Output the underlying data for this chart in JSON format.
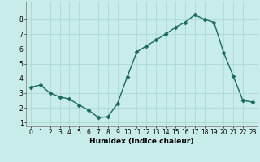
{
  "x": [
    0,
    1,
    2,
    3,
    4,
    5,
    6,
    7,
    8,
    9,
    10,
    11,
    12,
    13,
    14,
    15,
    16,
    17,
    18,
    19,
    20,
    21,
    22,
    23
  ],
  "y": [
    3.4,
    3.55,
    3.0,
    2.75,
    2.6,
    2.2,
    1.85,
    1.35,
    1.4,
    2.3,
    4.1,
    5.8,
    6.2,
    6.6,
    7.0,
    7.45,
    7.8,
    8.3,
    8.0,
    7.8,
    5.75,
    4.15,
    2.5,
    2.4
  ],
  "line_color": "#1a6b5a",
  "marker": "D",
  "markersize": 2.5,
  "linewidth": 1.0,
  "xlabel": "Humidex (Indice chaleur)",
  "bg_color": "#c8ecea",
  "grid_color": "#aed8d5",
  "xlim": [
    -0.5,
    23.5
  ],
  "ylim": [
    0.75,
    9.2
  ],
  "yticks": [
    1,
    2,
    3,
    4,
    5,
    6,
    7,
    8
  ],
  "xticks": [
    0,
    1,
    2,
    3,
    4,
    5,
    6,
    7,
    8,
    9,
    10,
    11,
    12,
    13,
    14,
    15,
    16,
    17,
    18,
    19,
    20,
    21,
    22,
    23
  ],
  "xtick_labels": [
    "0",
    "1",
    "2",
    "3",
    "4",
    "5",
    "6",
    "7",
    "8",
    "9",
    "10",
    "11",
    "12",
    "13",
    "14",
    "15",
    "16",
    "17",
    "18",
    "19",
    "20",
    "21",
    "22",
    "23"
  ],
  "tick_fontsize": 5.5,
  "xlabel_fontsize": 6.5,
  "label_color": "#000000",
  "spine_color": "#888888"
}
